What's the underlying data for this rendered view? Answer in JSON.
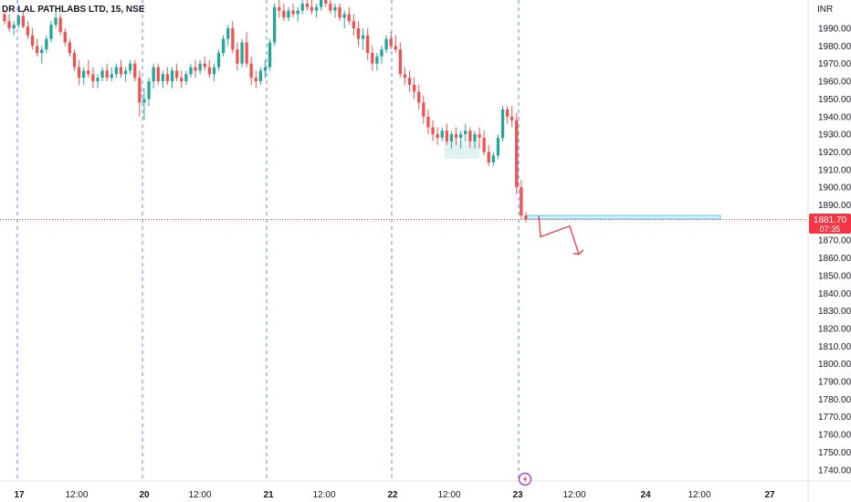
{
  "header": {
    "symbol_title": "DR LAL PATHLABS LTD, 15, NSE"
  },
  "colors": {
    "up": "#26a69a",
    "down": "#ef5350",
    "session": "#5b8def",
    "price_line": "#f23645",
    "zone": "#b2ebf2",
    "consolidation": "#e0f2f1",
    "annotation": "#f23645"
  },
  "price_badge": {
    "price": "1881.70",
    "countdown": "07:35"
  },
  "marker": {
    "icon": "lightning-icon"
  },
  "chart_data": {
    "type": "candlestick",
    "currency_label": "INR",
    "ylim": [
      1735,
      2012
    ],
    "y_ticks": [
      1990,
      1980,
      1970,
      1960,
      1950,
      1940,
      1930,
      1920,
      1910,
      1900,
      1890,
      1870,
      1860,
      1850,
      1840,
      1830,
      1820,
      1810,
      1800,
      1790,
      1780,
      1770,
      1760,
      1750,
      1740
    ],
    "y_tick_labels": [
      "1990.00",
      "1980.00",
      "1970.00",
      "1960.00",
      "1950.00",
      "1940.00",
      "1930.00",
      "1920.00",
      "1910.00",
      "1900.00",
      "1890.00",
      "1870.00",
      "1860.00",
      "1850.00",
      "1840.00",
      "1830.00",
      "1820.00",
      "1810.00",
      "1800.00",
      "1790.00",
      "1780.00",
      "1770.00",
      "1760.00",
      "1750.00",
      "1740.00"
    ],
    "x_labels": [
      "17",
      "12:00",
      "20",
      "12:00",
      "21",
      "12:00",
      "22",
      "12:00",
      "23",
      "12:00",
      "24",
      "12:00",
      "27"
    ],
    "sessions": [
      "17",
      "20",
      "21",
      "22",
      "23"
    ],
    "last_price": 1881.7,
    "candles": [
      [
        1998,
        2000,
        1992,
        1994
      ],
      [
        1994,
        1998,
        1988,
        1990
      ],
      [
        1990,
        1994,
        1986,
        1992
      ],
      [
        1992,
        1998,
        1990,
        1997
      ],
      [
        1997,
        2000,
        1990,
        1991
      ],
      [
        1991,
        1994,
        1984,
        1986
      ],
      [
        1986,
        1990,
        1978,
        1980
      ],
      [
        1980,
        1984,
        1974,
        1976
      ],
      [
        1976,
        1980,
        1970,
        1978
      ],
      [
        1978,
        1986,
        1976,
        1984
      ],
      [
        1984,
        1994,
        1982,
        1992
      ],
      [
        1992,
        2000,
        1990,
        1996
      ],
      [
        1996,
        1998,
        1986,
        1988
      ],
      [
        1988,
        1990,
        1980,
        1982
      ],
      [
        1982,
        1984,
        1974,
        1976
      ],
      [
        1976,
        1978,
        1966,
        1968
      ],
      [
        1968,
        1972,
        1958,
        1962
      ],
      [
        1962,
        1968,
        1958,
        1966
      ],
      [
        1966,
        1972,
        1962,
        1964
      ],
      [
        1964,
        1968,
        1956,
        1960
      ],
      [
        1960,
        1964,
        1956,
        1962
      ],
      [
        1962,
        1968,
        1960,
        1966
      ],
      [
        1966,
        1970,
        1960,
        1962
      ],
      [
        1962,
        1968,
        1960,
        1964
      ],
      [
        1964,
        1970,
        1962,
        1968
      ],
      [
        1968,
        1972,
        1962,
        1964
      ],
      [
        1964,
        1968,
        1960,
        1966
      ],
      [
        1966,
        1972,
        1964,
        1970
      ],
      [
        1970,
        1972,
        1960,
        1962
      ],
      [
        1962,
        1966,
        1940,
        1948
      ],
      [
        1948,
        1956,
        1938,
        1950
      ],
      [
        1950,
        1962,
        1946,
        1960
      ],
      [
        1960,
        1970,
        1956,
        1968
      ],
      [
        1968,
        1970,
        1958,
        1960
      ],
      [
        1960,
        1966,
        1956,
        1964
      ],
      [
        1964,
        1968,
        1958,
        1960
      ],
      [
        1960,
        1968,
        1956,
        1966
      ],
      [
        1966,
        1970,
        1960,
        1962
      ],
      [
        1962,
        1966,
        1956,
        1960
      ],
      [
        1960,
        1966,
        1958,
        1964
      ],
      [
        1964,
        1970,
        1962,
        1968
      ],
      [
        1968,
        1972,
        1962,
        1966
      ],
      [
        1966,
        1972,
        1964,
        1970
      ],
      [
        1970,
        1974,
        1966,
        1968
      ],
      [
        1968,
        1972,
        1962,
        1964
      ],
      [
        1964,
        1970,
        1960,
        1968
      ],
      [
        1968,
        1978,
        1966,
        1976
      ],
      [
        1976,
        1986,
        1974,
        1984
      ],
      [
        1984,
        1992,
        1980,
        1990
      ],
      [
        1990,
        1994,
        1976,
        1978
      ],
      [
        1978,
        1982,
        1966,
        1970
      ],
      [
        1970,
        1984,
        1968,
        1982
      ],
      [
        1982,
        1988,
        1968,
        1970
      ],
      [
        1970,
        1974,
        1958,
        1962
      ],
      [
        1962,
        1966,
        1956,
        1960
      ],
      [
        1960,
        1968,
        1958,
        1966
      ],
      [
        1966,
        1972,
        1962,
        1968
      ],
      [
        1968,
        1984,
        1966,
        1982
      ],
      [
        1982,
        2004,
        1980,
        2002
      ],
      [
        2002,
        2008,
        1996,
        2000
      ],
      [
        2000,
        2004,
        1994,
        1996
      ],
      [
        1996,
        2002,
        1994,
        2000
      ],
      [
        2000,
        2004,
        1996,
        1998
      ],
      [
        1998,
        2002,
        1994,
        2000
      ],
      [
        2000,
        2006,
        1998,
        2004
      ],
      [
        2004,
        2008,
        2000,
        2002
      ],
      [
        2002,
        2006,
        1998,
        2000
      ],
      [
        2000,
        2004,
        1996,
        2002
      ],
      [
        2002,
        2008,
        2000,
        2006
      ],
      [
        2006,
        2010,
        2002,
        2004
      ],
      [
        2004,
        2008,
        1998,
        2000
      ],
      [
        2000,
        2004,
        1996,
        2002
      ],
      [
        2002,
        2004,
        1994,
        1996
      ],
      [
        1996,
        2000,
        1990,
        1998
      ],
      [
        1998,
        2002,
        1992,
        1994
      ],
      [
        1994,
        1998,
        1986,
        1990
      ],
      [
        1990,
        1994,
        1980,
        1984
      ],
      [
        1984,
        1990,
        1978,
        1986
      ],
      [
        1986,
        1990,
        1972,
        1976
      ],
      [
        1976,
        1980,
        1966,
        1970
      ],
      [
        1970,
        1976,
        1966,
        1974
      ],
      [
        1974,
        1980,
        1970,
        1978
      ],
      [
        1978,
        1986,
        1976,
        1984
      ],
      [
        1984,
        1988,
        1978,
        1980
      ],
      [
        1980,
        1986,
        1976,
        1978
      ],
      [
        1978,
        1982,
        1962,
        1964
      ],
      [
        1964,
        1968,
        1958,
        1962
      ],
      [
        1962,
        1966,
        1954,
        1958
      ],
      [
        1958,
        1962,
        1950,
        1954
      ],
      [
        1954,
        1958,
        1944,
        1948
      ],
      [
        1948,
        1952,
        1936,
        1940
      ],
      [
        1940,
        1944,
        1930,
        1934
      ],
      [
        1934,
        1938,
        1926,
        1930
      ],
      [
        1930,
        1934,
        1924,
        1928
      ],
      [
        1928,
        1934,
        1926,
        1932
      ],
      [
        1932,
        1936,
        1924,
        1926
      ],
      [
        1926,
        1932,
        1922,
        1930
      ],
      [
        1930,
        1934,
        1924,
        1928
      ],
      [
        1928,
        1932,
        1922,
        1930
      ],
      [
        1930,
        1936,
        1926,
        1932
      ],
      [
        1932,
        1934,
        1922,
        1926
      ],
      [
        1926,
        1932,
        1922,
        1930
      ],
      [
        1930,
        1934,
        1922,
        1928
      ],
      [
        1928,
        1932,
        1918,
        1920
      ],
      [
        1920,
        1924,
        1912,
        1914
      ],
      [
        1914,
        1920,
        1912,
        1918
      ],
      [
        1918,
        1930,
        1916,
        1928
      ],
      [
        1928,
        1946,
        1926,
        1944
      ],
      [
        1944,
        1946,
        1936,
        1940
      ],
      [
        1940,
        1946,
        1934,
        1938
      ],
      [
        1938,
        1942,
        1896,
        1900
      ],
      [
        1900,
        1904,
        1882,
        1884
      ],
      [
        1884,
        1886,
        1880,
        1881.7
      ]
    ],
    "zone": {
      "from": 1882,
      "to": 1884
    },
    "consolidation": {
      "from": 1916,
      "to": 1926
    },
    "projection": [
      1884,
      1872,
      1878,
      1862
    ]
  }
}
